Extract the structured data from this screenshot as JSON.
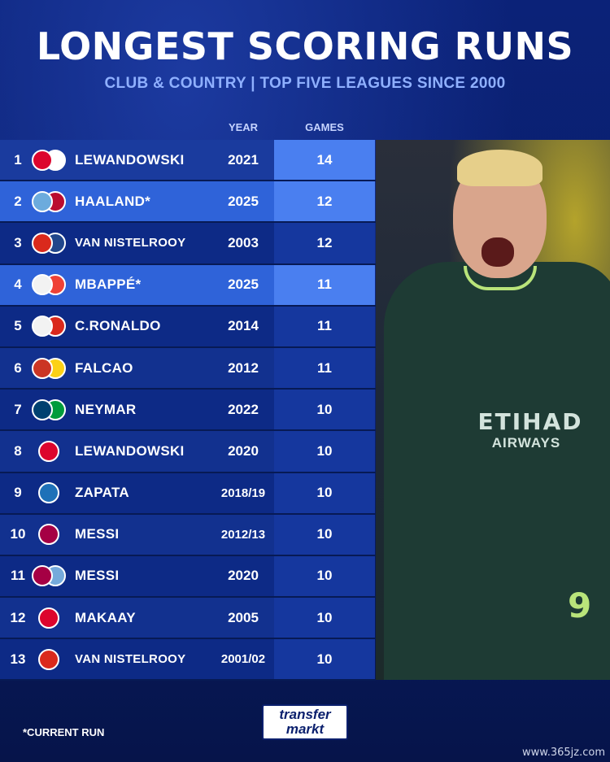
{
  "header": {
    "title": "LONGEST SCORING RUNS",
    "subtitle": "CLUB & COUNTRY | TOP FIVE LEAGUES SINCE 2000"
  },
  "columns": {
    "year": "YEAR",
    "games": "GAMES"
  },
  "rows": [
    {
      "rank": "1",
      "name": "LEWANDOWSKI",
      "year": "2021",
      "games": "14",
      "club_icon": "bayern-crest-icon",
      "nat_icon": "poland-flag-icon",
      "club_color": "#dc052d",
      "nat_color": "#ffffff"
    },
    {
      "rank": "2",
      "name": "HAALAND*",
      "year": "2025",
      "games": "12",
      "club_icon": "man-city-crest-icon",
      "nat_icon": "norway-flag-icon",
      "club_color": "#6cabdd",
      "nat_color": "#ba0c2f"
    },
    {
      "rank": "3",
      "name": "VAN NISTELROOY",
      "year": "2003",
      "games": "12",
      "club_icon": "man-utd-crest-icon",
      "nat_icon": "netherlands-flag-icon",
      "club_color": "#da291c",
      "nat_color": "#21468b"
    },
    {
      "rank": "4",
      "name": "MBAPPÉ*",
      "year": "2025",
      "games": "11",
      "club_icon": "real-madrid-crest-icon",
      "nat_icon": "france-flag-icon",
      "club_color": "#f2f2f2",
      "nat_color": "#ef4135"
    },
    {
      "rank": "5",
      "name": "C.RONALDO",
      "year": "2014",
      "games": "11",
      "club_icon": "real-madrid-crest-icon",
      "nat_icon": "portugal-flag-icon",
      "club_color": "#f2f2f2",
      "nat_color": "#da291c"
    },
    {
      "rank": "6",
      "name": "FALCAO",
      "year": "2012",
      "games": "11",
      "club_icon": "atletico-crest-icon",
      "nat_icon": "colombia-flag-icon",
      "club_color": "#cb3524",
      "nat_color": "#fcd116"
    },
    {
      "rank": "7",
      "name": "NEYMAR",
      "year": "2022",
      "games": "10",
      "club_icon": "psg-crest-icon",
      "nat_icon": "brazil-flag-icon",
      "club_color": "#004170",
      "nat_color": "#009c3b"
    },
    {
      "rank": "8",
      "name": "LEWANDOWSKI",
      "year": "2020",
      "games": "10",
      "club_icon": "bayern-crest-icon",
      "nat_icon": "",
      "club_color": "#dc052d",
      "nat_color": ""
    },
    {
      "rank": "9",
      "name": "ZAPATA",
      "year": "2018/19",
      "games": "10",
      "club_icon": "atalanta-crest-icon",
      "nat_icon": "",
      "club_color": "#1e71b8",
      "nat_color": ""
    },
    {
      "rank": "10",
      "name": "MESSI",
      "year": "2012/13",
      "games": "10",
      "club_icon": "barcelona-crest-icon",
      "nat_icon": "",
      "club_color": "#a50044",
      "nat_color": ""
    },
    {
      "rank": "11",
      "name": "MESSI",
      "year": "2020",
      "games": "10",
      "club_icon": "barcelona-crest-icon",
      "nat_icon": "argentina-flag-icon",
      "club_color": "#a50044",
      "nat_color": "#75aadb"
    },
    {
      "rank": "12",
      "name": "MAKAAY",
      "year": "2005",
      "games": "10",
      "club_icon": "bayern-crest-icon",
      "nat_icon": "",
      "club_color": "#dc052d",
      "nat_color": ""
    },
    {
      "rank": "13",
      "name": "VAN NISTELROOY",
      "year": "2001/02",
      "games": "10",
      "club_icon": "man-utd-crest-icon",
      "nat_icon": "",
      "club_color": "#da291c",
      "nat_color": ""
    }
  ],
  "photo": {
    "sponsor": "ETIHAD",
    "sponsor_sub": "AIRWAYS",
    "shirt_number": "9"
  },
  "footer": {
    "footnote": "*CURRENT RUN",
    "logo_line1": "transfer",
    "logo_line2": "markt",
    "watermark": "www.365jz.com"
  }
}
